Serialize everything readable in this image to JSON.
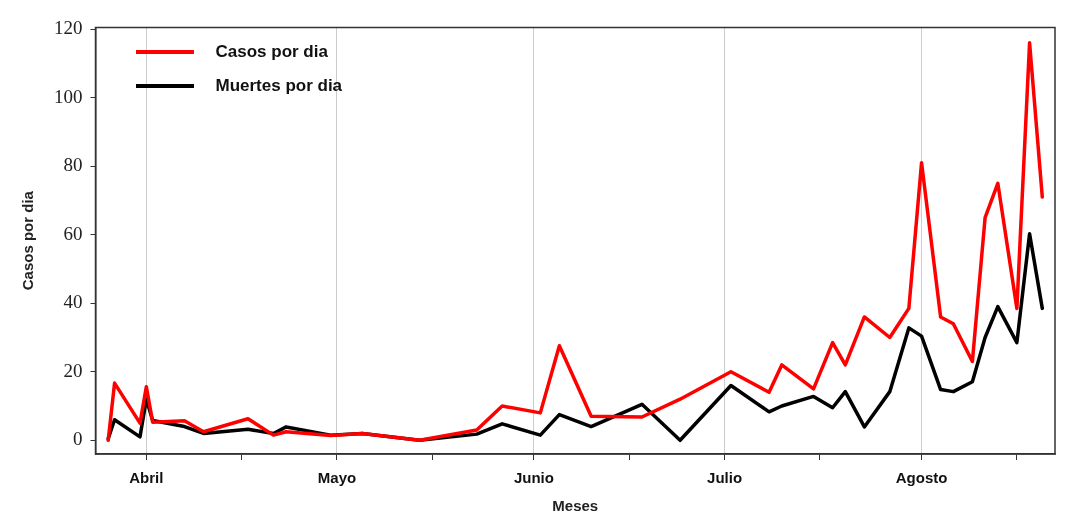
{
  "chart_data": {
    "type": "line",
    "xlabel": "Meses",
    "ylabel": "Casos por dia",
    "x": [
      "--03-26",
      "--03-27",
      "--03-31",
      "--04-01",
      "--04-02",
      "--04-07",
      "--04-10",
      "--04-17",
      "--04-21",
      "--04-23",
      "--04-30",
      "--05-05",
      "--05-14",
      "--05-23",
      "--05-27",
      "--06-02",
      "--06-05",
      "--06-10",
      "--06-18",
      "--06-24",
      "--07-02",
      "--07-08",
      "--07-10",
      "--07-15",
      "--07-18",
      "--07-20",
      "--07-23",
      "--07-27",
      "--07-30",
      "--08-01",
      "--08-04",
      "--08-06",
      "--08-09",
      "--08-11",
      "--08-13",
      "--08-16",
      "--08-18",
      "--08-20"
    ],
    "series": [
      {
        "name": "Casos por dia",
        "color": "#ff0000",
        "values": [
          0,
          16.7,
          5,
          15.6,
          5.3,
          5.7,
          2.5,
          6.3,
          1.5,
          2.5,
          1.4,
          2,
          0,
          3,
          10,
          8,
          27.6,
          7,
          6.8,
          12,
          20,
          14,
          22,
          15,
          28.5,
          22,
          36,
          30,
          38.5,
          81,
          36,
          34,
          23,
          65,
          75,
          38.5,
          116,
          71
        ]
      },
      {
        "name": "Muertes por dia",
        "color": "#000000",
        "values": [
          0.5,
          6,
          1,
          12,
          5.8,
          4,
          2,
          3.2,
          2,
          3.9,
          1.5,
          2,
          0,
          1.8,
          4.8,
          1.5,
          7.5,
          4,
          10.5,
          0,
          16,
          8.3,
          10,
          12.8,
          9.5,
          14.2,
          3.9,
          14.2,
          32.8,
          30.4,
          14.8,
          14.2,
          17.1,
          30,
          39,
          28.5,
          60.3,
          38.5
        ]
      }
    ],
    "xlim": [
      "--03-24",
      "--08-22"
    ],
    "xticks": [
      {
        "value": "--04-01",
        "label": "Abril"
      },
      {
        "value": "--04-16",
        "label": null
      },
      {
        "value": "--05-01",
        "label": "Mayo"
      },
      {
        "value": "--05-16",
        "label": null
      },
      {
        "value": "--06-01",
        "label": "Junio"
      },
      {
        "value": "--06-16",
        "label": null
      },
      {
        "value": "--07-01",
        "label": "Julio"
      },
      {
        "value": "--07-16",
        "label": null
      },
      {
        "value": "--08-01",
        "label": "Agosto"
      },
      {
        "value": "--08-16",
        "label": null
      }
    ],
    "ylim": [
      -4,
      120.5
    ],
    "yticks": [
      0,
      20,
      40,
      60,
      80,
      100,
      120
    ],
    "grid": "x",
    "legend": "top left",
    "marker": "none",
    "line_style": "solid"
  }
}
